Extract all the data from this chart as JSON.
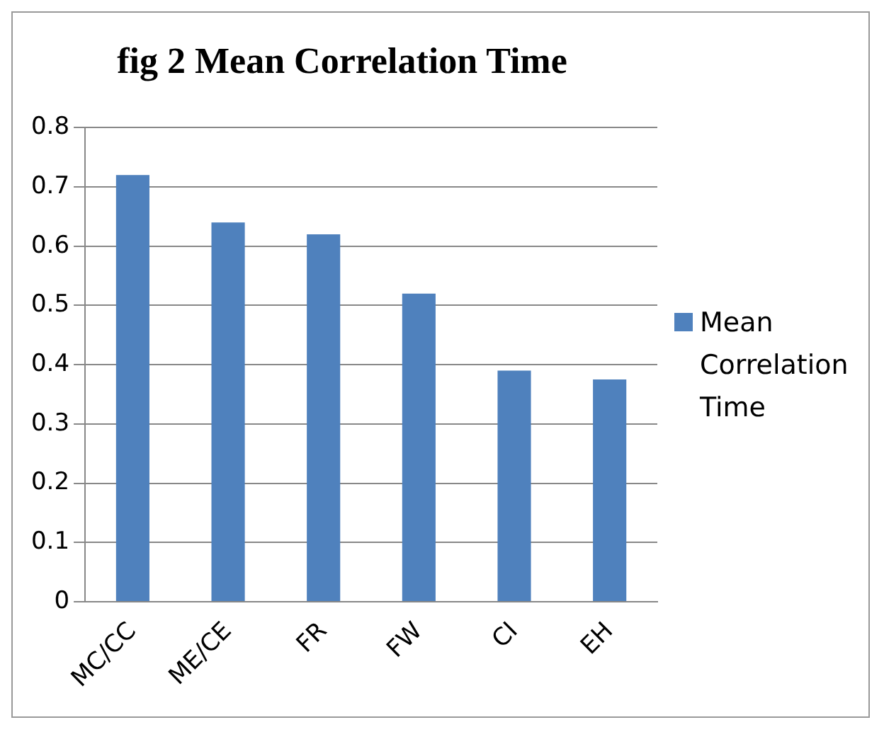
{
  "chart_data": {
    "type": "bar",
    "title": "fig 2 Mean Correlation Time",
    "categories": [
      "MC/CC",
      "ME/CE",
      "FR",
      "FW",
      "CI",
      "EH"
    ],
    "series": [
      {
        "name": "Mean Correlation Time",
        "color": "#4f81bd",
        "values": [
          0.72,
          0.64,
          0.62,
          0.52,
          0.39,
          0.375
        ]
      }
    ],
    "ylim": [
      0,
      0.8
    ],
    "yticks": [
      0,
      0.1,
      0.2,
      0.3,
      0.4,
      0.5,
      0.6,
      0.7,
      0.8
    ],
    "grid": "y",
    "legend": "right"
  }
}
